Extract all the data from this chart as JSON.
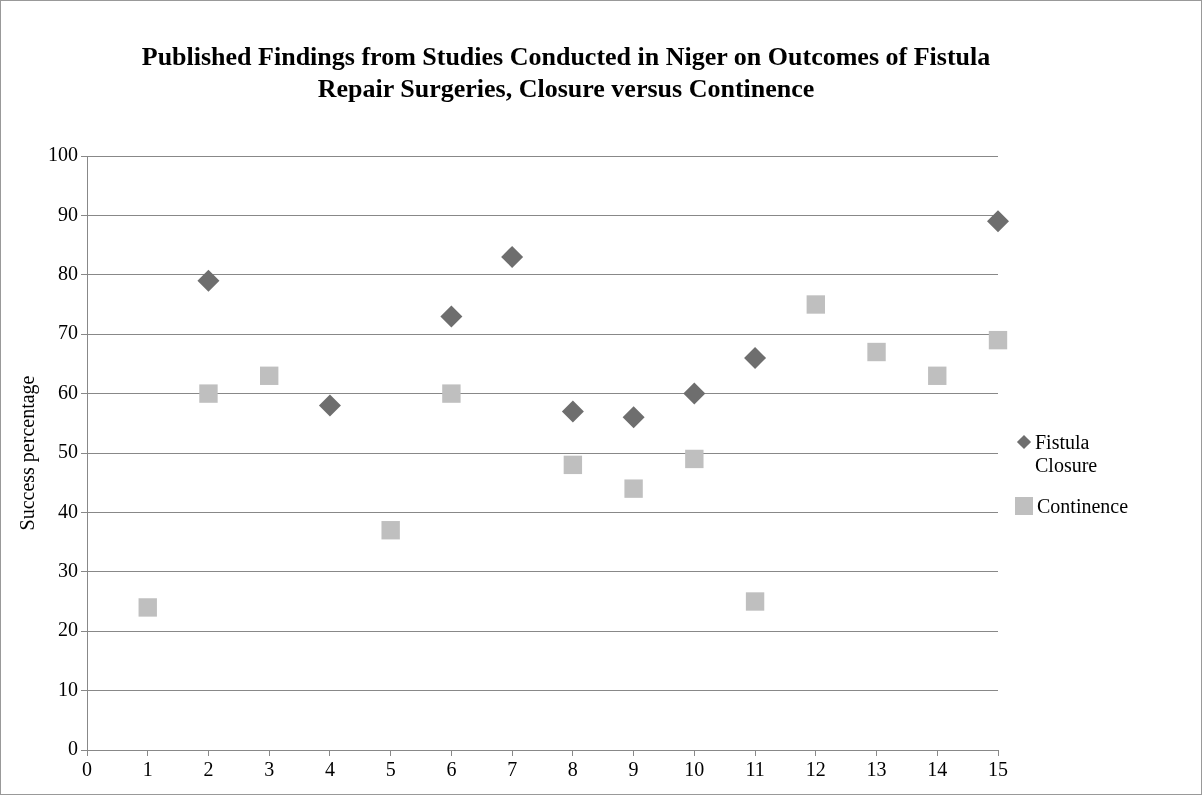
{
  "chart_data": {
    "type": "scatter",
    "title": "Published Findings from Studies Conducted in Niger on Outcomes of Fistula Repair Surgeries, Closure versus Continence",
    "ylabel": "Success percentage",
    "series": [
      {
        "name": "Fistula Closure",
        "color": "#6e6e6e",
        "marker": "diamond",
        "x": [
          2,
          4,
          6,
          7,
          8,
          9,
          10,
          11,
          15
        ],
        "values": [
          79,
          58,
          73,
          83,
          57,
          56,
          60,
          66,
          89
        ]
      },
      {
        "name": "Continence",
        "color": "#bfbfbf",
        "marker": "square",
        "x": [
          1,
          2,
          3,
          5,
          6,
          8,
          9,
          10,
          11,
          12,
          13,
          14,
          15
        ],
        "values": [
          24,
          60,
          63,
          37,
          60,
          48,
          44,
          49,
          25,
          75,
          67,
          63,
          69
        ]
      }
    ],
    "xlim": [
      0,
      15
    ],
    "xticks": [
      0,
      1,
      2,
      3,
      4,
      5,
      6,
      7,
      8,
      9,
      10,
      11,
      12,
      13,
      14,
      15
    ],
    "ylim": [
      0,
      100
    ],
    "yticks": [
      0,
      10,
      20,
      30,
      40,
      50,
      60,
      70,
      80,
      90,
      100
    ],
    "grid": "y",
    "legend": "right"
  }
}
